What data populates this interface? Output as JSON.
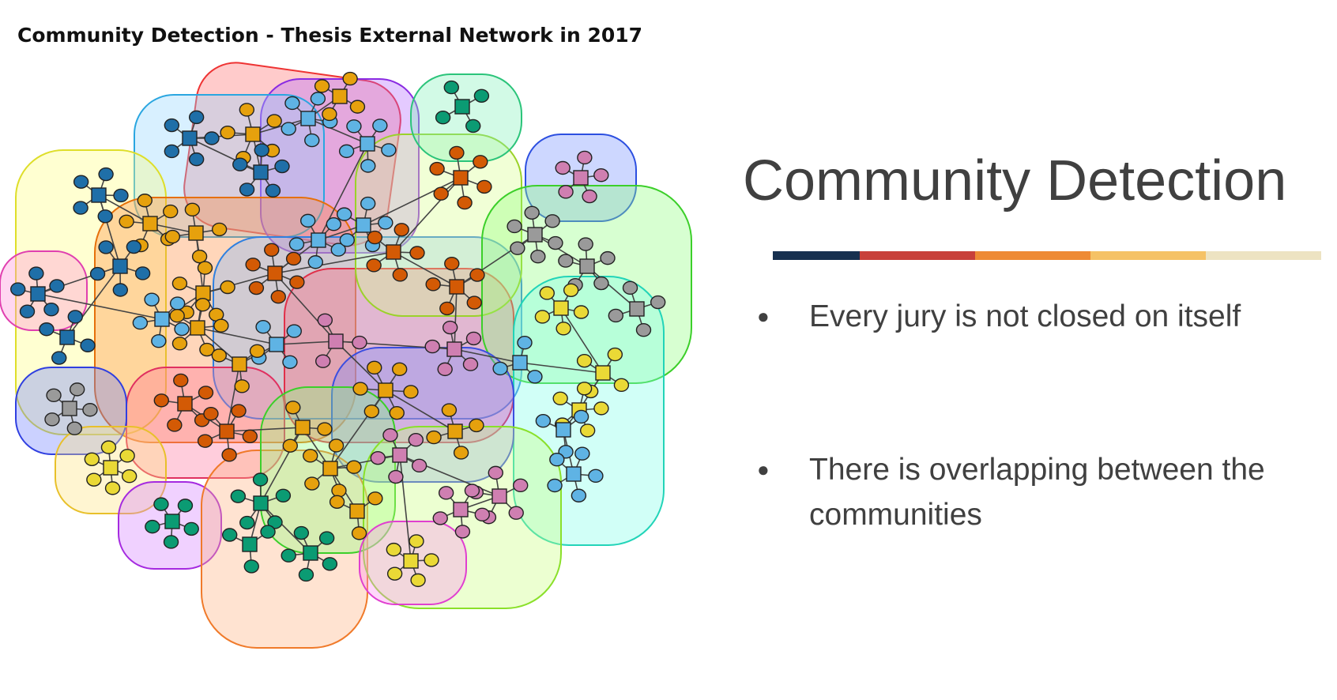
{
  "figure": {
    "title": "Community Detection - Thesis External Network in 2017"
  },
  "slide": {
    "title": "Community Detection",
    "accent_colors": [
      "#17304f",
      "#c8403a",
      "#ee8a34",
      "#f5c266",
      "#ede3c2"
    ],
    "bullets": [
      {
        "text": "Every jury is not closed on itself"
      },
      {
        "text": "There is overlapping between the communities"
      }
    ]
  },
  "network_colors": {
    "hub_dark_blue": "#1f6fa8",
    "hub_light_blue": "#5fb3e4",
    "orange": "#e6a10d",
    "dark_orange": "#d35a05",
    "green": "#0b9b73",
    "pink": "#cf7fb1",
    "gray": "#9a9a9a",
    "yellow": "#ead936"
  }
}
